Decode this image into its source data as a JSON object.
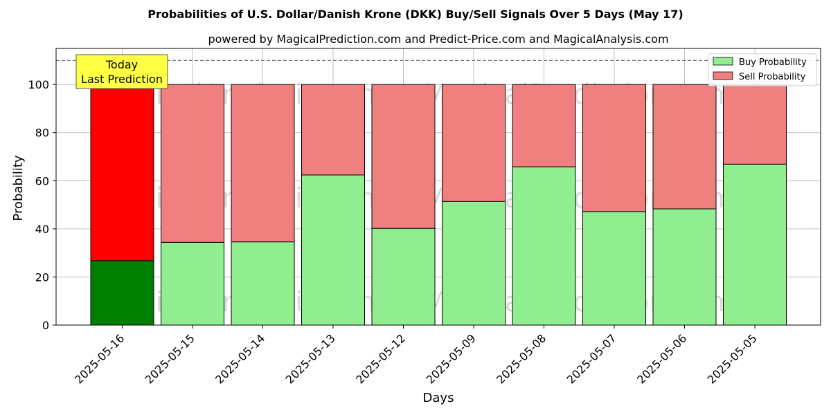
{
  "chart_data": {
    "type": "bar",
    "stacked": true,
    "title": "Probabilities of U.S. Dollar/Danish Krone (DKK) Buy/Sell Signals Over 5 Days (May 17)",
    "subtitle": "powered by MagicalPrediction.com and Predict-Price.com and MagicalAnalysis.com",
    "xlabel": "Days",
    "ylabel": "Probability",
    "ylim": [
      0,
      115
    ],
    "yticks": [
      0,
      20,
      40,
      60,
      80,
      100
    ],
    "reference_line": 110,
    "grid": true,
    "legend_position": "top-right",
    "categories": [
      "2025-05-16",
      "2025-05-15",
      "2025-05-14",
      "2025-05-13",
      "2025-05-12",
      "2025-05-09",
      "2025-05-08",
      "2025-05-07",
      "2025-05-06",
      "2025-05-05"
    ],
    "series": [
      {
        "name": "Buy Probability",
        "values": [
          26.8,
          34.4,
          34.6,
          62.4,
          40.2,
          51.4,
          65.8,
          47.2,
          48.3,
          66.9
        ]
      },
      {
        "name": "Sell Probability",
        "values": [
          73.2,
          65.6,
          65.4,
          37.6,
          59.8,
          48.6,
          34.2,
          52.8,
          51.7,
          33.1
        ]
      }
    ],
    "colors": {
      "buy": "#90ee90",
      "sell": "#f08080",
      "buy_highlight": "#008000",
      "sell_highlight": "#ff0000",
      "annotation_bg": "#ffff44"
    },
    "annotation": {
      "line1": "Today",
      "line2": "Last Prediction"
    },
    "watermarks": [
      "MagicalAnalysis.com",
      "MagicalPrediction.com"
    ]
  }
}
